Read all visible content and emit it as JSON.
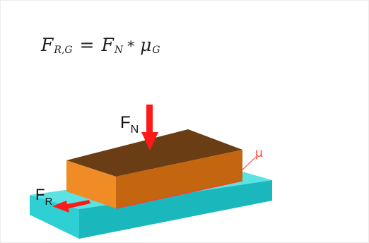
{
  "formula": {
    "lhs_symbol": "F",
    "lhs_subscript": "R,G",
    "equals": "=",
    "rhs_symbol": "F",
    "rhs_subscript": "N",
    "operator": "*",
    "coef_symbol": "μ",
    "coef_subscript": "G"
  },
  "labels": {
    "normal_force_symbol": "F",
    "normal_force_subscript": "N",
    "friction_force_symbol": "F",
    "friction_force_subscript": "R",
    "friction_coef": "μ"
  },
  "colors": {
    "block_top": "#6b3d14",
    "block_front": "#f08c26",
    "block_side": "#c4650f",
    "plate_top": "#5be3e3",
    "plate_front": "#2ed0d4",
    "plate_side": "#1ab8bd",
    "force_arrow": "#ff1a1a",
    "mu_line": "#ff3b2f"
  },
  "icons": {
    "normal_force": "down-arrow-icon",
    "friction_force": "left-arrow-icon"
  }
}
